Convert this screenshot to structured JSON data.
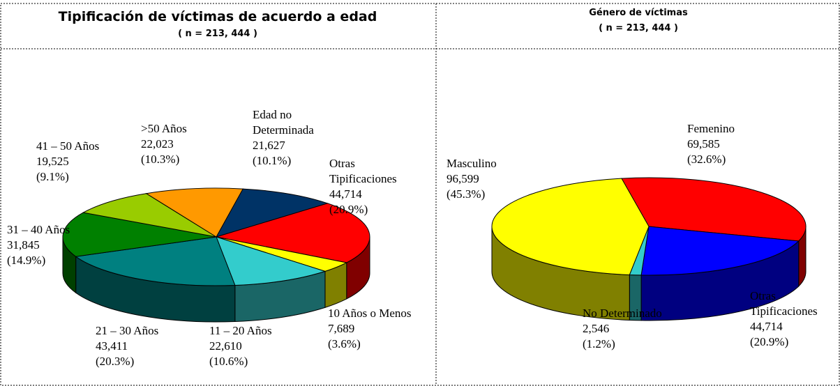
{
  "chart_data": [
    {
      "type": "pie3d",
      "title": "Tipificación de víctimas de acuerdo a edad",
      "subtitle": "( n = 213, 444 )",
      "categories": [
        "Edad no Determinada",
        "Otras Tipificaciones",
        "10 Años o Menos",
        "11 – 20 Años",
        "21 – 30 Años",
        "31 – 40 Años",
        "41 – 50 Años",
        ">50 Años"
      ],
      "values": [
        21627,
        44714,
        7689,
        22610,
        43411,
        31845,
        19525,
        22023
      ],
      "value_labels": [
        "21,627",
        "44,714",
        "7,689",
        "22,610",
        "43,411",
        "31,845",
        "19,525",
        "22,023"
      ],
      "percent_labels": [
        "(10.1%)",
        "(20.9%)",
        "(3.6%)",
        "(10.6%)",
        "(20.3%)",
        "(14.9%)",
        "(9.1%)",
        "(10.3%)"
      ],
      "colors": [
        "#003366",
        "#ff0000",
        "#ffff00",
        "#33cccc",
        "#008080",
        "#008000",
        "#99cc00",
        "#ff9900"
      ]
    },
    {
      "type": "pie3d",
      "title": "Género de víctimas",
      "subtitle": "( n = 213, 444 )",
      "categories": [
        "Femenino",
        "Otras Tipificaciones",
        "No Determinado",
        "Masculino"
      ],
      "values": [
        69585,
        44714,
        2546,
        96599
      ],
      "value_labels": [
        "69,585",
        "44,714",
        "2,546",
        "96,599"
      ],
      "percent_labels": [
        "(32.6%)",
        "(20.9%)",
        "(1.2%)",
        "(45.3%)"
      ],
      "colors": [
        "#ff0000",
        "#0000ff",
        "#33cccc",
        "#ffff00"
      ]
    }
  ]
}
